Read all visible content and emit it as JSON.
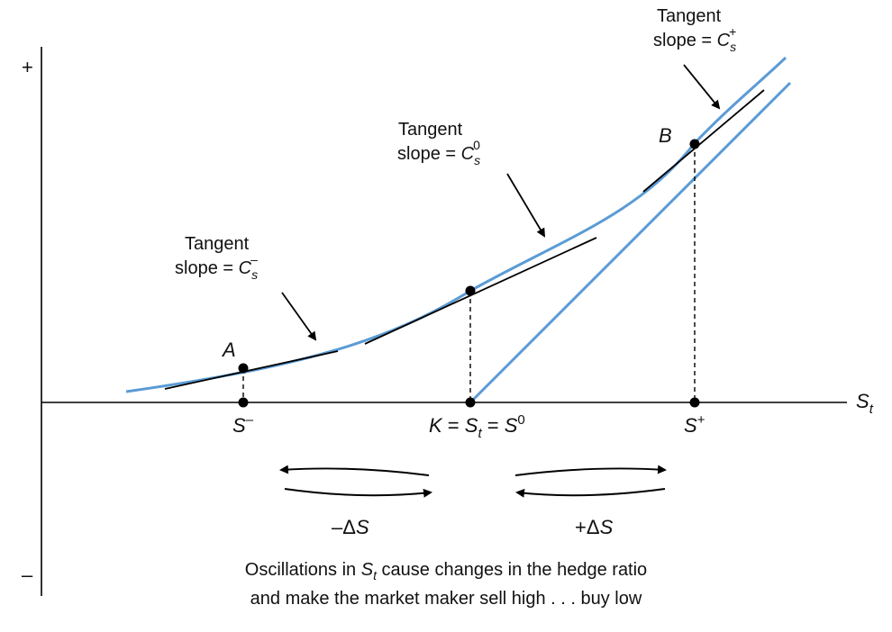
{
  "axes": {
    "y_top_label": "+",
    "y_bottom_label": "–",
    "x_label": "S",
    "x_label_sub": "t"
  },
  "points": {
    "a": "A",
    "b": "B"
  },
  "ticks": {
    "s_minus": {
      "base": "S",
      "sup": "–"
    },
    "k": {
      "k": "K",
      "eq1": " = ",
      "s": "S",
      "sub": "t",
      "eq2": " = ",
      "s0": "S",
      "sup0": "0"
    },
    "s_plus": {
      "base": "S",
      "sup": "+"
    }
  },
  "tangent_labels": {
    "minus": {
      "line1": "Tangent",
      "prefix": "slope = ",
      "c": "C",
      "sub": "s",
      "sup": "–"
    },
    "zero": {
      "line1": "Tangent",
      "prefix": "slope = ",
      "c": "C",
      "sub": "s",
      "sup": "0"
    },
    "plus": {
      "line1": "Tangent",
      "prefix": "slope = ",
      "c": "C",
      "sub": "s",
      "sup": "+"
    }
  },
  "oscillation": {
    "minus": {
      "sign": "–",
      "delta": "Δ",
      "s": "S"
    },
    "plus": {
      "sign": "+",
      "delta": "Δ",
      "s": "S"
    }
  },
  "caption": {
    "line1_pre": "Oscillations in ",
    "line1_s": "S",
    "line1_sub": "t",
    "line1_post": " cause changes in the hedge ratio",
    "line2": "and make the market maker sell high . . . buy low"
  },
  "colors": {
    "curve": "#5b9bd5",
    "axis": "#000000",
    "tangent": "#000000"
  }
}
